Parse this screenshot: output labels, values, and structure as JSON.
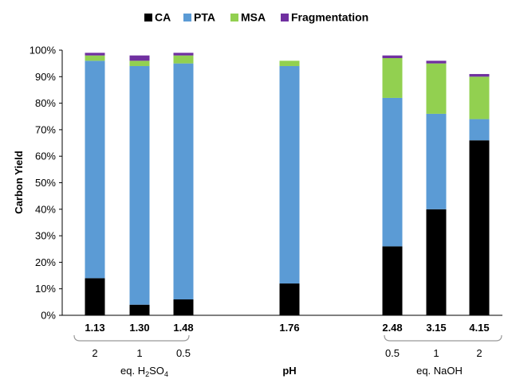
{
  "chart_data": {
    "type": "bar",
    "stacked": true,
    "categories": [
      "1.13",
      "1.30",
      "1.48",
      "1.76",
      "2.48",
      "3.15",
      "4.15"
    ],
    "series": [
      {
        "name": "CA",
        "color": "#000000",
        "values": [
          14,
          4,
          6,
          12,
          26,
          40,
          66
        ]
      },
      {
        "name": "PTA",
        "color": "#5b9bd5",
        "values": [
          82,
          90,
          89,
          82,
          56,
          36,
          8
        ]
      },
      {
        "name": "MSA",
        "color": "#92d050",
        "values": [
          2,
          2,
          3,
          2,
          15,
          19,
          16
        ]
      },
      {
        "name": "Fragmentation",
        "color": "#7030a0",
        "values": [
          1,
          2,
          1,
          0,
          1,
          1,
          1
        ]
      }
    ],
    "ylabel": "Carbon Yield",
    "ylim": [
      0,
      100
    ],
    "yticks": [
      "0%",
      "10%",
      "20%",
      "30%",
      "40%",
      "50%",
      "60%",
      "70%",
      "80%",
      "90%",
      "100%"
    ],
    "xlabel": "pH",
    "legend_position": "top",
    "grid": false,
    "secondary_labels": {
      "acid": {
        "values": [
          "2",
          "1",
          "0.5"
        ],
        "label_prefix": "eq. H",
        "label_sub1": "2",
        "label_mid": "SO",
        "label_sub2": "4"
      },
      "base": {
        "values": [
          "0.5",
          "1",
          "2"
        ],
        "label": "eq. NaOH"
      }
    }
  }
}
